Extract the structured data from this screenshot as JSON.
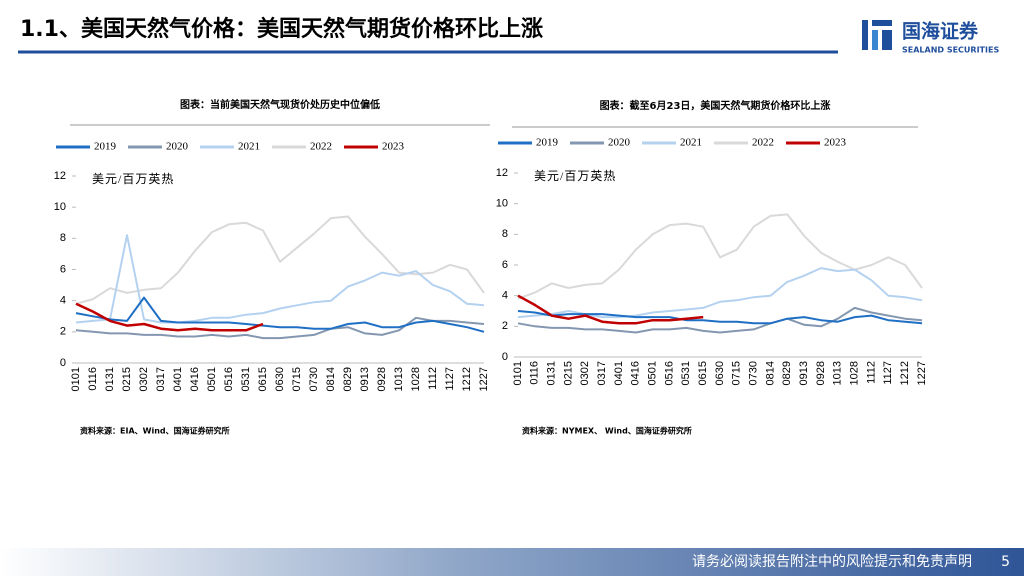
{
  "header": {
    "title": "1.1、美国天然气价格：美国天然气期货价格环比上涨",
    "logo_name": "国海证券",
    "logo_sub": "SEALAND SECURITIES"
  },
  "chart_data": [
    {
      "type": "line",
      "title": "图表：当前美国天然气现货价处历史中位偏低",
      "unit": "美元/百万英热",
      "source": "资料来源：EIA、Wind、国海证券研究所",
      "categories": [
        "0101",
        "0116",
        "0131",
        "0215",
        "0302",
        "0317",
        "0401",
        "0416",
        "0501",
        "0516",
        "0531",
        "0615",
        "0630",
        "0715",
        "0730",
        "0814",
        "0829",
        "0913",
        "0928",
        "1013",
        "1028",
        "1112",
        "1127",
        "1212",
        "1227"
      ],
      "ylim": [
        0,
        12
      ],
      "yticks": [
        0,
        2,
        4,
        6,
        8,
        10,
        12
      ],
      "series": [
        {
          "name": "2019",
          "color": "#1f6fc5",
          "values": [
            3.2,
            3.0,
            2.8,
            2.7,
            4.2,
            2.7,
            2.6,
            2.6,
            2.6,
            2.6,
            2.5,
            2.4,
            2.3,
            2.3,
            2.2,
            2.2,
            2.5,
            2.6,
            2.3,
            2.3,
            2.6,
            2.7,
            2.5,
            2.3,
            2.0
          ]
        },
        {
          "name": "2020",
          "color": "#8497b0",
          "values": [
            2.1,
            2.0,
            1.9,
            1.9,
            1.8,
            1.8,
            1.7,
            1.7,
            1.8,
            1.7,
            1.8,
            1.6,
            1.6,
            1.7,
            1.8,
            2.2,
            2.3,
            1.9,
            1.8,
            2.1,
            2.9,
            2.7,
            2.7,
            2.6,
            2.5
          ]
        },
        {
          "name": "2021",
          "color": "#b4d2f0",
          "values": [
            2.6,
            2.7,
            2.8,
            8.2,
            2.8,
            2.6,
            2.6,
            2.7,
            2.9,
            2.9,
            3.1,
            3.2,
            3.5,
            3.7,
            3.9,
            4.0,
            4.9,
            5.3,
            5.8,
            5.6,
            5.9,
            5.0,
            4.6,
            3.8,
            3.7
          ]
        },
        {
          "name": "2022",
          "color": "#d9d9d9",
          "values": [
            3.8,
            4.1,
            4.8,
            4.5,
            4.7,
            4.8,
            5.8,
            7.2,
            8.4,
            8.9,
            9.0,
            8.5,
            6.5,
            7.4,
            8.3,
            9.3,
            9.4,
            8.1,
            7.0,
            5.8,
            5.7,
            5.8,
            6.3,
            6.0,
            4.5
          ]
        },
        {
          "name": "2023",
          "color": "#c00000",
          "values": [
            3.8,
            3.3,
            2.7,
            2.4,
            2.5,
            2.2,
            2.1,
            2.2,
            2.1,
            2.1,
            2.1,
            2.5,
            null,
            null,
            null,
            null,
            null,
            null,
            null,
            null,
            null,
            null,
            null,
            null,
            null
          ]
        }
      ]
    },
    {
      "type": "line",
      "title": "图表：截至6月23日，美国天然气期货价格环比上涨",
      "unit": "美元/百万英热",
      "source": "资料来源：NYMEX、 Wind、国海证券研究所",
      "categories": [
        "0101",
        "0116",
        "0131",
        "0215",
        "0302",
        "0317",
        "0401",
        "0416",
        "0501",
        "0516",
        "0531",
        "0615",
        "0630",
        "0715",
        "0730",
        "0814",
        "0829",
        "0913",
        "0928",
        "1013",
        "1028",
        "1112",
        "1127",
        "1212",
        "1227"
      ],
      "ylim": [
        0,
        12
      ],
      "yticks": [
        0,
        2,
        4,
        6,
        8,
        10,
        12
      ],
      "series": [
        {
          "name": "2019",
          "color": "#1f6fc5",
          "values": [
            3.0,
            2.9,
            2.7,
            2.8,
            2.8,
            2.8,
            2.7,
            2.6,
            2.6,
            2.6,
            2.4,
            2.4,
            2.3,
            2.3,
            2.2,
            2.2,
            2.5,
            2.6,
            2.4,
            2.3,
            2.6,
            2.7,
            2.4,
            2.3,
            2.2
          ]
        },
        {
          "name": "2020",
          "color": "#8497b0",
          "values": [
            2.2,
            2.0,
            1.9,
            1.9,
            1.8,
            1.8,
            1.7,
            1.6,
            1.8,
            1.8,
            1.9,
            1.7,
            1.6,
            1.7,
            1.8,
            2.2,
            2.5,
            2.1,
            2.0,
            2.5,
            3.2,
            2.9,
            2.7,
            2.5,
            2.4
          ]
        },
        {
          "name": "2021",
          "color": "#b4d2f0",
          "values": [
            2.6,
            2.7,
            2.8,
            3.0,
            2.8,
            2.6,
            2.6,
            2.7,
            2.9,
            3.0,
            3.1,
            3.2,
            3.6,
            3.7,
            3.9,
            4.0,
            4.9,
            5.3,
            5.8,
            5.6,
            5.7,
            5.0,
            4.0,
            3.9,
            3.7
          ]
        },
        {
          "name": "2022",
          "color": "#d9d9d9",
          "values": [
            3.8,
            4.2,
            4.8,
            4.5,
            4.7,
            4.8,
            5.7,
            7.0,
            8.0,
            8.6,
            8.7,
            8.5,
            6.5,
            7.0,
            8.5,
            9.2,
            9.3,
            7.9,
            6.8,
            6.2,
            5.7,
            6.0,
            6.5,
            6.0,
            4.5
          ]
        },
        {
          "name": "2023",
          "color": "#c00000",
          "values": [
            4.0,
            3.4,
            2.7,
            2.5,
            2.7,
            2.3,
            2.2,
            2.2,
            2.4,
            2.4,
            2.5,
            2.6,
            null,
            null,
            null,
            null,
            null,
            null,
            null,
            null,
            null,
            null,
            null,
            null,
            null
          ]
        }
      ]
    }
  ],
  "footer": {
    "disclaimer": "请务必阅读报告附注中的风险提示和免责声明",
    "page": "5"
  }
}
